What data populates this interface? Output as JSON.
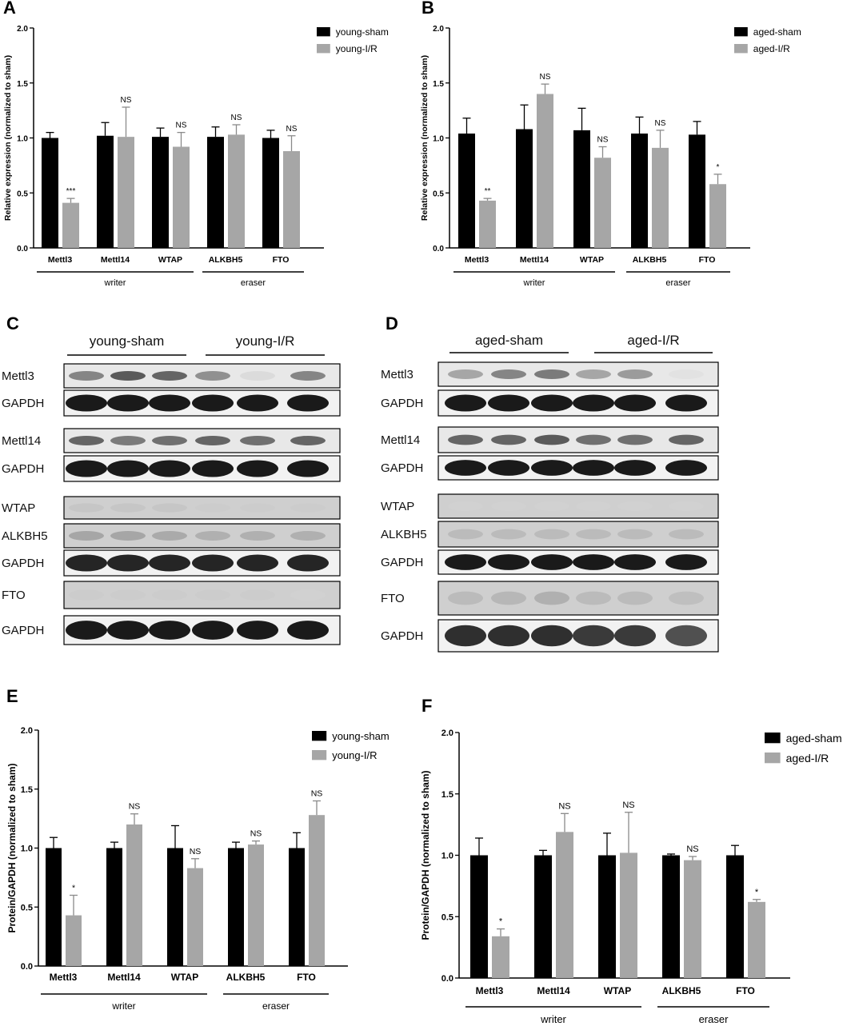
{
  "panels": {
    "A": {
      "letter": "A"
    },
    "B": {
      "letter": "B"
    },
    "C": {
      "letter": "C"
    },
    "D": {
      "letter": "D"
    },
    "E": {
      "letter": "E"
    },
    "F": {
      "letter": "F"
    }
  },
  "chart_data": [
    {
      "id": "A",
      "type": "bar",
      "ylabel": "Relative expression (normalized to sham)",
      "ylim": [
        0,
        2.0
      ],
      "yticks": [
        "0.0",
        "0.5",
        "1.0",
        "1.5",
        "2.0"
      ],
      "categories": [
        "Mettl3",
        "Mettl14",
        "WTAP",
        "ALKBH5",
        "FTO"
      ],
      "series": [
        {
          "name": "young-sham",
          "color": "#000000",
          "values": [
            1.0,
            1.02,
            1.01,
            1.01,
            1.0
          ],
          "errors": [
            0.05,
            0.12,
            0.08,
            0.09,
            0.07
          ]
        },
        {
          "name": "young-I/R",
          "color": "#a6a6a6",
          "values": [
            0.41,
            1.01,
            0.92,
            1.03,
            0.88
          ],
          "errors": [
            0.04,
            0.27,
            0.13,
            0.09,
            0.14
          ]
        }
      ],
      "annotations": [
        "***",
        "NS",
        "NS",
        "NS",
        "NS"
      ],
      "groups": [
        {
          "label": "writer",
          "from": 0,
          "to": 2
        },
        {
          "label": "eraser",
          "from": 3,
          "to": 4
        }
      ]
    },
    {
      "id": "B",
      "type": "bar",
      "ylabel": "Relative expression (normalized to sham)",
      "ylim": [
        0,
        2.0
      ],
      "yticks": [
        "0.0",
        "0.5",
        "1.0",
        "1.5",
        "2.0"
      ],
      "categories": [
        "Mettl3",
        "Mettl14",
        "WTAP",
        "ALKBH5",
        "FTO"
      ],
      "series": [
        {
          "name": "aged-sham",
          "color": "#000000",
          "values": [
            1.04,
            1.08,
            1.07,
            1.04,
            1.03
          ],
          "errors": [
            0.14,
            0.22,
            0.2,
            0.15,
            0.12
          ]
        },
        {
          "name": "aged-I/R",
          "color": "#a6a6a6",
          "values": [
            0.43,
            1.4,
            0.82,
            0.91,
            0.58
          ],
          "errors": [
            0.02,
            0.09,
            0.1,
            0.16,
            0.09
          ]
        }
      ],
      "annotations": [
        "**",
        "NS",
        "NS",
        "NS",
        "*"
      ],
      "groups": [
        {
          "label": "writer",
          "from": 0,
          "to": 2
        },
        {
          "label": "eraser",
          "from": 3,
          "to": 4
        }
      ]
    },
    {
      "id": "E",
      "type": "bar",
      "ylabel": "Protein/GAPDH (normalized to sham)",
      "ylim": [
        0,
        2.0
      ],
      "yticks": [
        "0.0",
        "0.5",
        "1.0",
        "1.5",
        "2.0"
      ],
      "categories": [
        "Mettl3",
        "Mettl14",
        "WTAP",
        "ALKBH5",
        "FTO"
      ],
      "series": [
        {
          "name": "young-sham",
          "color": "#000000",
          "values": [
            1.0,
            1.0,
            1.0,
            1.0,
            1.0
          ],
          "errors": [
            0.09,
            0.05,
            0.19,
            0.05,
            0.13
          ]
        },
        {
          "name": "young-I/R",
          "color": "#a6a6a6",
          "values": [
            0.43,
            1.2,
            0.83,
            1.03,
            1.28
          ],
          "errors": [
            0.17,
            0.09,
            0.08,
            0.03,
            0.12
          ]
        }
      ],
      "annotations": [
        "*",
        "NS",
        "NS",
        "NS",
        "NS"
      ],
      "groups": [
        {
          "label": "writer",
          "from": 0,
          "to": 2
        },
        {
          "label": "eraser",
          "from": 3,
          "to": 4
        }
      ]
    },
    {
      "id": "F",
      "type": "bar",
      "ylabel": "Protein/GAPDH (normalized to sham)",
      "ylim": [
        0,
        2.0
      ],
      "yticks": [
        "0.0",
        "0.5",
        "1.0",
        "1.5",
        "2.0"
      ],
      "categories": [
        "Mettl3",
        "Mettl14",
        "WTAP",
        "ALKBH5",
        "FTO"
      ],
      "series": [
        {
          "name": "aged-sham",
          "color": "#000000",
          "values": [
            1.0,
            1.0,
            1.0,
            1.0,
            1.0
          ],
          "errors": [
            0.14,
            0.04,
            0.18,
            0.01,
            0.08
          ]
        },
        {
          "name": "aged-I/R",
          "color": "#a6a6a6",
          "values": [
            0.34,
            1.19,
            1.02,
            0.96,
            0.62
          ],
          "errors": [
            0.06,
            0.15,
            0.33,
            0.03,
            0.02
          ]
        }
      ],
      "annotations": [
        "*",
        "NS",
        "NS",
        "NS",
        "*"
      ],
      "groups": [
        {
          "label": "writer",
          "from": 0,
          "to": 2
        },
        {
          "label": "eraser",
          "from": 3,
          "to": 4
        }
      ]
    }
  ],
  "blots": [
    {
      "id": "C",
      "groups": [
        "young-sham",
        "young-I/R"
      ],
      "rows": [
        {
          "label": "Mettl3",
          "intensities": [
            0.45,
            0.65,
            0.6,
            0.4,
            0.05,
            0.45
          ]
        },
        {
          "label": "GAPDH",
          "intensities": [
            0.95,
            0.95,
            0.95,
            0.95,
            0.95,
            0.95
          ]
        },
        {
          "label": "Mettl14",
          "intensities": [
            0.6,
            0.5,
            0.55,
            0.6,
            0.55,
            0.6
          ]
        },
        {
          "label": "GAPDH",
          "intensities": [
            0.95,
            0.95,
            0.95,
            0.95,
            0.95,
            0.95
          ]
        },
        {
          "label": "WTAP",
          "intensities": [
            0.15,
            0.15,
            0.15,
            0.12,
            0.12,
            0.12
          ]
        },
        {
          "label": "ALKBH5",
          "intensities": [
            0.3,
            0.3,
            0.28,
            0.25,
            0.25,
            0.25
          ]
        },
        {
          "label": "GAPDH",
          "intensities": [
            0.9,
            0.9,
            0.9,
            0.9,
            0.9,
            0.9
          ]
        },
        {
          "label": "FTO",
          "intensities": [
            0.12,
            0.12,
            0.12,
            0.12,
            0.12,
            0.1
          ]
        },
        {
          "label": "GAPDH",
          "intensities": [
            0.95,
            0.95,
            0.95,
            0.95,
            0.95,
            0.95
          ]
        }
      ]
    },
    {
      "id": "D",
      "groups": [
        "aged-sham",
        "aged-I/R"
      ],
      "rows": [
        {
          "label": "Mettl3",
          "intensities": [
            0.3,
            0.45,
            0.5,
            0.3,
            0.35,
            0.02
          ]
        },
        {
          "label": "GAPDH",
          "intensities": [
            0.95,
            0.95,
            0.95,
            0.95,
            0.95,
            0.95
          ]
        },
        {
          "label": "Mettl14",
          "intensities": [
            0.6,
            0.6,
            0.65,
            0.55,
            0.55,
            0.6
          ]
        },
        {
          "label": "GAPDH",
          "intensities": [
            0.95,
            0.95,
            0.95,
            0.95,
            0.95,
            0.95
          ]
        },
        {
          "label": "WTAP",
          "intensities": [
            0.1,
            0.1,
            0.1,
            0.1,
            0.1,
            0.1
          ]
        },
        {
          "label": "ALKBH5",
          "intensities": [
            0.2,
            0.2,
            0.2,
            0.2,
            0.2,
            0.2
          ]
        },
        {
          "label": "GAPDH",
          "intensities": [
            0.95,
            0.95,
            0.95,
            0.95,
            0.95,
            0.95
          ]
        },
        {
          "label": "FTO",
          "intensities": [
            0.2,
            0.22,
            0.25,
            0.2,
            0.2,
            0.18
          ]
        },
        {
          "label": "GAPDH",
          "intensities": [
            0.85,
            0.85,
            0.85,
            0.8,
            0.8,
            0.7
          ]
        }
      ]
    }
  ]
}
